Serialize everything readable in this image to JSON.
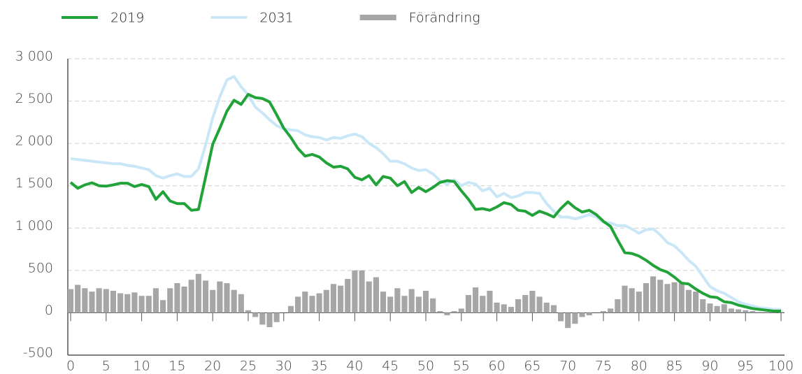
{
  "chart_data": {
    "type": "combo",
    "x": [
      0,
      1,
      2,
      3,
      4,
      5,
      6,
      7,
      8,
      9,
      10,
      11,
      12,
      13,
      14,
      15,
      16,
      17,
      18,
      19,
      20,
      21,
      22,
      23,
      24,
      25,
      26,
      27,
      28,
      29,
      30,
      31,
      32,
      33,
      34,
      35,
      36,
      37,
      38,
      39,
      40,
      41,
      42,
      43,
      44,
      45,
      46,
      47,
      48,
      49,
      50,
      51,
      52,
      53,
      54,
      55,
      56,
      57,
      58,
      59,
      60,
      61,
      62,
      63,
      64,
      65,
      66,
      67,
      68,
      69,
      70,
      71,
      72,
      73,
      74,
      75,
      76,
      77,
      78,
      79,
      80,
      81,
      82,
      83,
      84,
      85,
      86,
      87,
      88,
      89,
      90,
      91,
      92,
      93,
      94,
      95,
      96,
      97,
      98,
      99,
      100
    ],
    "series": [
      {
        "name": "2019",
        "type": "line",
        "color": "#22a33a",
        "values": [
          1540,
          1470,
          1510,
          1535,
          1500,
          1495,
          1510,
          1530,
          1530,
          1490,
          1515,
          1490,
          1340,
          1430,
          1320,
          1290,
          1290,
          1210,
          1220,
          1600,
          1990,
          2180,
          2380,
          2510,
          2460,
          2580,
          2540,
          2530,
          2490,
          2340,
          2180,
          2070,
          1940,
          1850,
          1870,
          1840,
          1770,
          1720,
          1730,
          1700,
          1600,
          1570,
          1620,
          1510,
          1610,
          1590,
          1500,
          1550,
          1420,
          1480,
          1430,
          1480,
          1540,
          1560,
          1550,
          1440,
          1340,
          1220,
          1230,
          1210,
          1250,
          1300,
          1280,
          1210,
          1200,
          1150,
          1200,
          1170,
          1130,
          1230,
          1310,
          1240,
          1190,
          1210,
          1160,
          1080,
          1020,
          860,
          710,
          700,
          670,
          620,
          560,
          510,
          480,
          420,
          350,
          340,
          280,
          230,
          190,
          180,
          130,
          120,
          90,
          70,
          50,
          40,
          30,
          20,
          20
        ]
      },
      {
        "name": "2031",
        "type": "line",
        "color": "#c9e7f7",
        "values": [
          1820,
          1810,
          1800,
          1790,
          1780,
          1770,
          1760,
          1760,
          1740,
          1730,
          1710,
          1690,
          1620,
          1590,
          1620,
          1640,
          1610,
          1610,
          1700,
          1980,
          2300,
          2550,
          2750,
          2790,
          2670,
          2570,
          2430,
          2360,
          2280,
          2210,
          2170,
          2160,
          2150,
          2100,
          2080,
          2070,
          2040,
          2070,
          2060,
          2090,
          2110,
          2080,
          2000,
          1950,
          1880,
          1790,
          1790,
          1760,
          1710,
          1680,
          1690,
          1640,
          1560,
          1520,
          1570,
          1500,
          1540,
          1520,
          1440,
          1470,
          1370,
          1410,
          1360,
          1380,
          1420,
          1420,
          1410,
          1290,
          1200,
          1130,
          1130,
          1110,
          1130,
          1160,
          1130,
          1070,
          1060,
          1030,
          1030,
          990,
          940,
          980,
          990,
          920,
          830,
          790,
          710,
          620,
          550,
          430,
          310,
          260,
          230,
          180,
          130,
          100,
          80,
          60,
          50,
          40,
          40
        ]
      },
      {
        "name": "Förändring",
        "type": "bar",
        "color": "#a6a6a6",
        "values": [
          280,
          330,
          290,
          250,
          290,
          280,
          260,
          230,
          220,
          240,
          200,
          200,
          290,
          150,
          290,
          350,
          310,
          390,
          460,
          380,
          270,
          370,
          350,
          270,
          220,
          30,
          -50,
          -140,
          -170,
          -110,
          0,
          80,
          190,
          250,
          200,
          230,
          270,
          340,
          320,
          400,
          500,
          500,
          370,
          420,
          250,
          190,
          290,
          200,
          280,
          190,
          260,
          170,
          20,
          -30,
          20,
          50,
          210,
          300,
          200,
          260,
          120,
          100,
          70,
          160,
          210,
          260,
          190,
          120,
          90,
          -100,
          -180,
          -130,
          -50,
          -30,
          0,
          20,
          50,
          160,
          320,
          290,
          250,
          350,
          430,
          390,
          340,
          360,
          350,
          270,
          250,
          160,
          110,
          80,
          100,
          50,
          40,
          30,
          20,
          10,
          10,
          10,
          10
        ]
      }
    ],
    "xlim": [
      0,
      100
    ],
    "xticks": [
      0,
      5,
      10,
      15,
      20,
      25,
      30,
      35,
      40,
      45,
      50,
      55,
      60,
      65,
      70,
      75,
      80,
      85,
      90,
      95,
      100
    ],
    "ylim": [
      -500,
      3000
    ],
    "yticks": [
      {
        "value": -500,
        "label": "-500"
      },
      0,
      500,
      {
        "value": 1000,
        "label": "1 000"
      },
      {
        "value": 1500,
        "label": "1 500"
      },
      {
        "value": 2000,
        "label": "2 000"
      },
      {
        "value": 2500,
        "label": "2 500"
      },
      {
        "value": 3000,
        "label": "3 000"
      }
    ],
    "grid": true,
    "legend": "top-left"
  }
}
